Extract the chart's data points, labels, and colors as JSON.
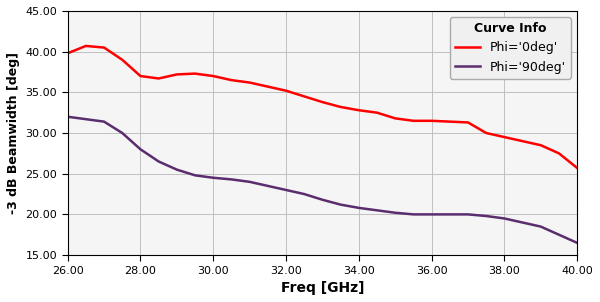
{
  "title": "",
  "xlabel": "Freq [GHz]",
  "ylabel": "-3 dB Beamwidth [deg]",
  "xlim": [
    26.0,
    40.0
  ],
  "ylim": [
    15.0,
    45.0
  ],
  "xticks": [
    26.0,
    28.0,
    30.0,
    32.0,
    34.0,
    36.0,
    38.0,
    40.0
  ],
  "yticks": [
    15.0,
    20.0,
    25.0,
    30.0,
    35.0,
    40.0,
    45.0
  ],
  "phi0_color": "#ff0000",
  "phi90_color": "#5a2d6e",
  "phi0_x": [
    26.0,
    26.5,
    27.0,
    27.5,
    28.0,
    28.5,
    29.0,
    29.5,
    30.0,
    30.5,
    31.0,
    31.5,
    32.0,
    32.5,
    33.0,
    33.5,
    34.0,
    34.5,
    35.0,
    35.5,
    36.0,
    36.5,
    37.0,
    37.5,
    38.0,
    38.5,
    39.0,
    39.5,
    40.0
  ],
  "phi0_y": [
    39.8,
    40.7,
    40.5,
    39.0,
    37.0,
    36.7,
    37.2,
    37.3,
    37.0,
    36.5,
    36.2,
    35.7,
    35.2,
    34.5,
    33.8,
    33.2,
    32.8,
    32.5,
    31.8,
    31.5,
    31.5,
    31.4,
    31.3,
    30.0,
    29.5,
    29.0,
    28.5,
    27.5,
    25.7
  ],
  "phi90_x": [
    26.0,
    26.5,
    27.0,
    27.5,
    28.0,
    28.5,
    29.0,
    29.5,
    30.0,
    30.5,
    31.0,
    31.5,
    32.0,
    32.5,
    33.0,
    33.5,
    34.0,
    34.5,
    35.0,
    35.5,
    36.0,
    36.5,
    37.0,
    37.5,
    38.0,
    38.5,
    39.0,
    39.5,
    40.0
  ],
  "phi90_y": [
    32.0,
    31.7,
    31.4,
    30.0,
    28.0,
    26.5,
    25.5,
    24.8,
    24.5,
    24.3,
    24.0,
    23.5,
    23.0,
    22.5,
    21.8,
    21.2,
    20.8,
    20.5,
    20.2,
    20.0,
    20.0,
    20.0,
    20.0,
    19.8,
    19.5,
    19.0,
    18.5,
    17.5,
    16.5
  ],
  "legend_title": "Curve Info",
  "legend_phi0": "Phi='0deg'",
  "legend_phi90": "Phi='90deg'",
  "background_color": "#ffffff",
  "grid_color": "#c0c0c0",
  "linewidth": 1.8
}
